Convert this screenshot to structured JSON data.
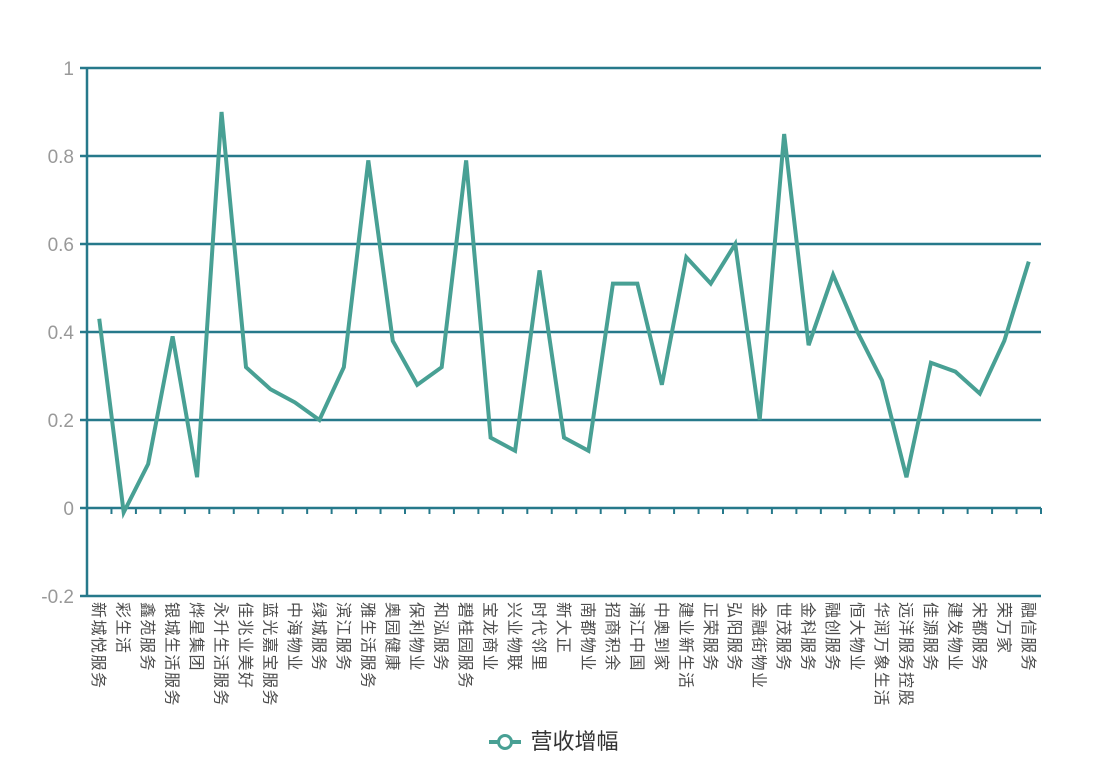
{
  "chart_data": {
    "type": "line",
    "title": "",
    "legend_position": "bottom-center",
    "grid": "horizontal",
    "ylim": [
      -0.2,
      1
    ],
    "ytick_step": 0.2,
    "ytick_labels": [
      "1",
      "0.8",
      "0.6",
      "0.4",
      "0.2",
      "0",
      "-0.2"
    ],
    "xlabel": "",
    "ylabel": "",
    "series_name": "营收增幅",
    "categories": [
      "新城悦服务",
      "彩生活",
      "鑫苑服务",
      "银城生活服务",
      "烨星集团",
      "永升生活服务",
      "佳兆业美好",
      "蓝光嘉宝服务",
      "中海物业",
      "绿城服务",
      "滨江服务",
      "雅生活服务",
      "奥园健康",
      "保利物业",
      "和泓服务",
      "碧桂园服务",
      "宝龙商业",
      "兴业物联",
      "时代邻里",
      "新大正",
      "南都物业",
      "招商积余",
      "浦江中国",
      "中奥到家",
      "建业新生活",
      "正荣服务",
      "弘阳服务",
      "金融街物业",
      "世茂服务",
      "金科服务",
      "融创服务",
      "恒大物业",
      "华润万象生活",
      "远洋服务控股",
      "佳源服务",
      "建发物业",
      "宋都服务",
      "荣万家",
      "融信服务"
    ],
    "values": [
      0.43,
      -0.01,
      0.1,
      0.39,
      0.07,
      0.9,
      0.32,
      0.27,
      0.24,
      0.2,
      0.32,
      0.79,
      0.38,
      0.28,
      0.32,
      0.79,
      0.16,
      0.13,
      0.54,
      0.16,
      0.13,
      0.51,
      0.51,
      0.28,
      0.57,
      0.51,
      0.6,
      0.2,
      0.85,
      0.37,
      0.53,
      0.4,
      0.29,
      0.07,
      0.33,
      0.31,
      0.26,
      0.38,
      0.56
    ],
    "line_color": "#48A094",
    "axis_color": "#26798B",
    "x_label_color": "#4D4D4D",
    "y_label_color": "#999999",
    "legend_text_color": "#333333",
    "background": "#FFFFFF"
  },
  "legend": {
    "label": "营收增幅"
  }
}
